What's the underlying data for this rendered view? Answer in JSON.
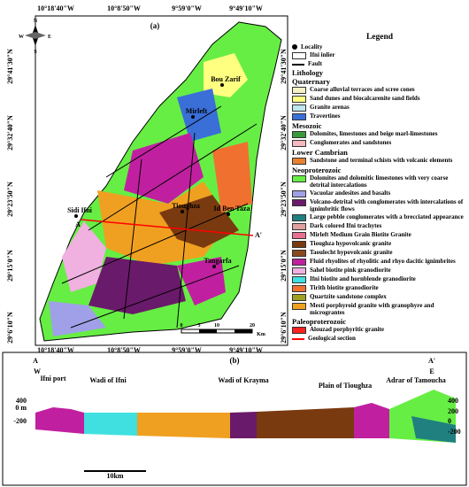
{
  "map": {
    "label": "(a)",
    "top_coords": [
      "10°18'40\"W",
      "10°8'50\"W",
      "9°59'0\"W",
      "9°49'10\"W"
    ],
    "bottom_coords": [
      "10°18'40\"W",
      "10°8'50\"W",
      "9°59'0\"W",
      "9°49'10\"W"
    ],
    "left_coords": [
      "29°41'30\"N",
      "29°32'40\"N",
      "29°23'50\"N",
      "29°15'0\"N",
      "29°6'10\"N"
    ],
    "right_coords": [
      "29°41'30\"N",
      "29°32'40\"N",
      "29°23'50\"N",
      "29°15'0\"N",
      "29°6'10\"N"
    ],
    "places": [
      "Bou Zarif",
      "Mirleft",
      "Sidi Ifni",
      "Tioughza",
      "Id Ben Taza",
      "Tangarfa"
    ],
    "section_ends": [
      "A",
      "A'"
    ],
    "compass": [
      "N",
      "S",
      "E",
      "W"
    ],
    "scale": [
      "0",
      "5",
      "10",
      "20",
      "Km"
    ]
  },
  "legend": {
    "title": "Legend",
    "symbols": [
      "Locality",
      "Ifni inlier",
      "Fault"
    ],
    "lithology": "Lithology",
    "groups": [
      {
        "name": "Quaternary",
        "units": [
          {
            "label": "Coarse alluvial terraces  and scree cones",
            "color": "#f4f0c4"
          },
          {
            "label": "Sand dunes and biocalcarenite sand fields",
            "color": "#ffff80"
          },
          {
            "label": "Granite arenas",
            "color": "#bfe6f0"
          },
          {
            "label": "Travertines",
            "color": "#3a6fd8"
          }
        ]
      },
      {
        "name": "Mesozoic",
        "units": [
          {
            "label": "Dolomites, limestones and beige marl-limestones",
            "color": "#3a9a3a"
          },
          {
            "label": "Conglomerates and sandstones",
            "color": "#f4b8c0"
          }
        ]
      },
      {
        "name": "Lower Cambrian",
        "units": [
          {
            "label": "Sandstone and terminal schists with volcanic elements",
            "color": "#e88030"
          }
        ]
      },
      {
        "name": "Neoproterozoic",
        "units": [
          {
            "label": "Dolomites and dolomitic limestones with very coarse detrital intercalations",
            "color": "#66ee44"
          },
          {
            "label": "Vacuolar andesites and basalts",
            "color": "#a0a0e8"
          },
          {
            "label": "Volcano-detrital with conglomerates with intercalations of ignimbritic flows",
            "color": "#6a1a6a"
          },
          {
            "label": "Large pebble conglomerates with a brecciated appearance",
            "color": "#208080"
          },
          {
            "label": "Dark colored Ifni trachytes",
            "color": "#e0a0a0"
          },
          {
            "label": "Mirleft Medium Grain Biotite Granite",
            "color": "#e87090"
          },
          {
            "label": "Tioughza hypovolcanic granite",
            "color": "#7a3a10"
          },
          {
            "label": "Taoulecht hypovolcanic granite",
            "color": "#8a4a20"
          },
          {
            "label": "Fluid rhyolites of rhyolitic and rhyo dacitic ignimbrites",
            "color": "#c020a0"
          },
          {
            "label": "Sahel biotite pink granodiorite",
            "color": "#f0b0e0"
          },
          {
            "label": "Ifni biotite and hornblende granodiorite",
            "color": "#40e0e0"
          },
          {
            "label": "Tirith biotite granodiorite",
            "color": "#f07030"
          },
          {
            "label": "Quartzite sandstone complex",
            "color": "#a0a020"
          },
          {
            "label": "Mesti porphyroid granite with granophyre and micrograntes",
            "color": "#f0a020"
          }
        ]
      },
      {
        "name": "Paleoproterozoic",
        "units": [
          {
            "label": "Alouzad porphyritic granite",
            "color": "#ff2020"
          }
        ]
      }
    ],
    "section_item": "Geological section"
  },
  "section": {
    "label": "(b)",
    "start": "A",
    "start_dir": "W",
    "end": "A'",
    "end_dir": "E",
    "left_ticks": [
      "400",
      "0 m",
      "-200"
    ],
    "right_ticks": [
      "400",
      "200",
      "0",
      "-200"
    ],
    "features": [
      "Ifni port",
      "Wadi of Ifni",
      "Wadi of Krayma",
      "Plain of Tioughza",
      "Adrar of Tamoucha"
    ],
    "scale": "10km"
  }
}
